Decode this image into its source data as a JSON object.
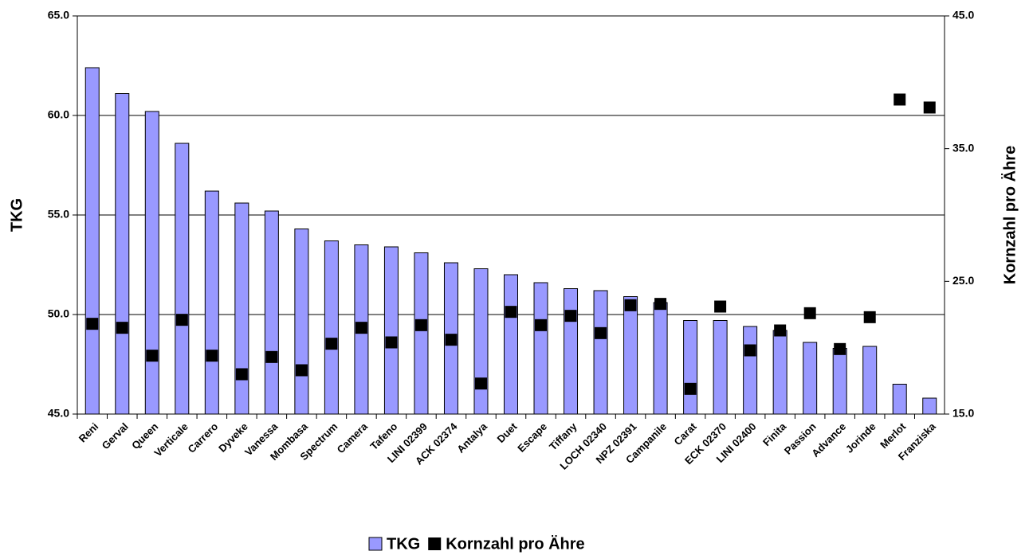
{
  "chart_data": {
    "type": "bar",
    "ylabel": "TKG",
    "y2label": "Kornzahl pro Ähre",
    "categories": [
      "Reni",
      "Gerval",
      "Queen",
      "Verticale",
      "Carrero",
      "Dyveke",
      "Vanessa",
      "Mombasa",
      "Spectrum",
      "Camera",
      "Tafeno",
      "LINI 02399",
      "ACK 02374",
      "Antalya",
      "Duet",
      "Escape",
      "Tiffany",
      "LOCH 02340",
      "NPZ 02391",
      "Campanile",
      "Carat",
      "ECK 02370",
      "LINI 02400",
      "Finita",
      "Passion",
      "Advance",
      "Jorinde",
      "Merlot",
      "Franziska"
    ],
    "series": [
      {
        "name": "TKG",
        "type": "bar",
        "color": "#9999ff",
        "values": [
          62.4,
          61.1,
          60.2,
          58.6,
          56.2,
          55.6,
          55.2,
          54.3,
          53.7,
          53.5,
          53.4,
          53.1,
          52.6,
          52.3,
          52.0,
          51.6,
          51.3,
          51.2,
          50.9,
          50.6,
          49.7,
          49.7,
          49.4,
          49.2,
          48.6,
          48.3,
          48.4,
          46.5,
          45.8
        ]
      },
      {
        "name": "Kornzahl pro Ähre",
        "type": "scatter",
        "axis": "y2",
        "color": "#000000",
        "values": [
          21.8,
          21.5,
          19.4,
          22.1,
          19.4,
          18.0,
          19.3,
          18.3,
          20.3,
          21.5,
          20.4,
          21.7,
          20.6,
          17.3,
          22.7,
          21.7,
          22.4,
          21.1,
          23.2,
          23.3,
          16.9,
          23.1,
          19.8,
          21.3,
          22.6,
          19.9,
          22.3,
          38.7,
          38.1
        ]
      }
    ],
    "ylim": [
      45,
      65
    ],
    "yticks": [
      {
        "value": 45,
        "label": "45.0"
      },
      {
        "value": 50,
        "label": "50.0"
      },
      {
        "value": 55,
        "label": "55.0"
      },
      {
        "value": 60,
        "label": "60.0"
      },
      {
        "value": 65,
        "label": "65.0"
      }
    ],
    "y2lim": [
      15,
      45
    ],
    "y2ticks": [
      {
        "value": 15,
        "label": "15.0"
      },
      {
        "value": 25,
        "label": "25.0"
      },
      {
        "value": 35,
        "label": "35.0"
      },
      {
        "value": 45,
        "label": "45.0"
      }
    ],
    "grid": true,
    "legend": "bottom"
  }
}
